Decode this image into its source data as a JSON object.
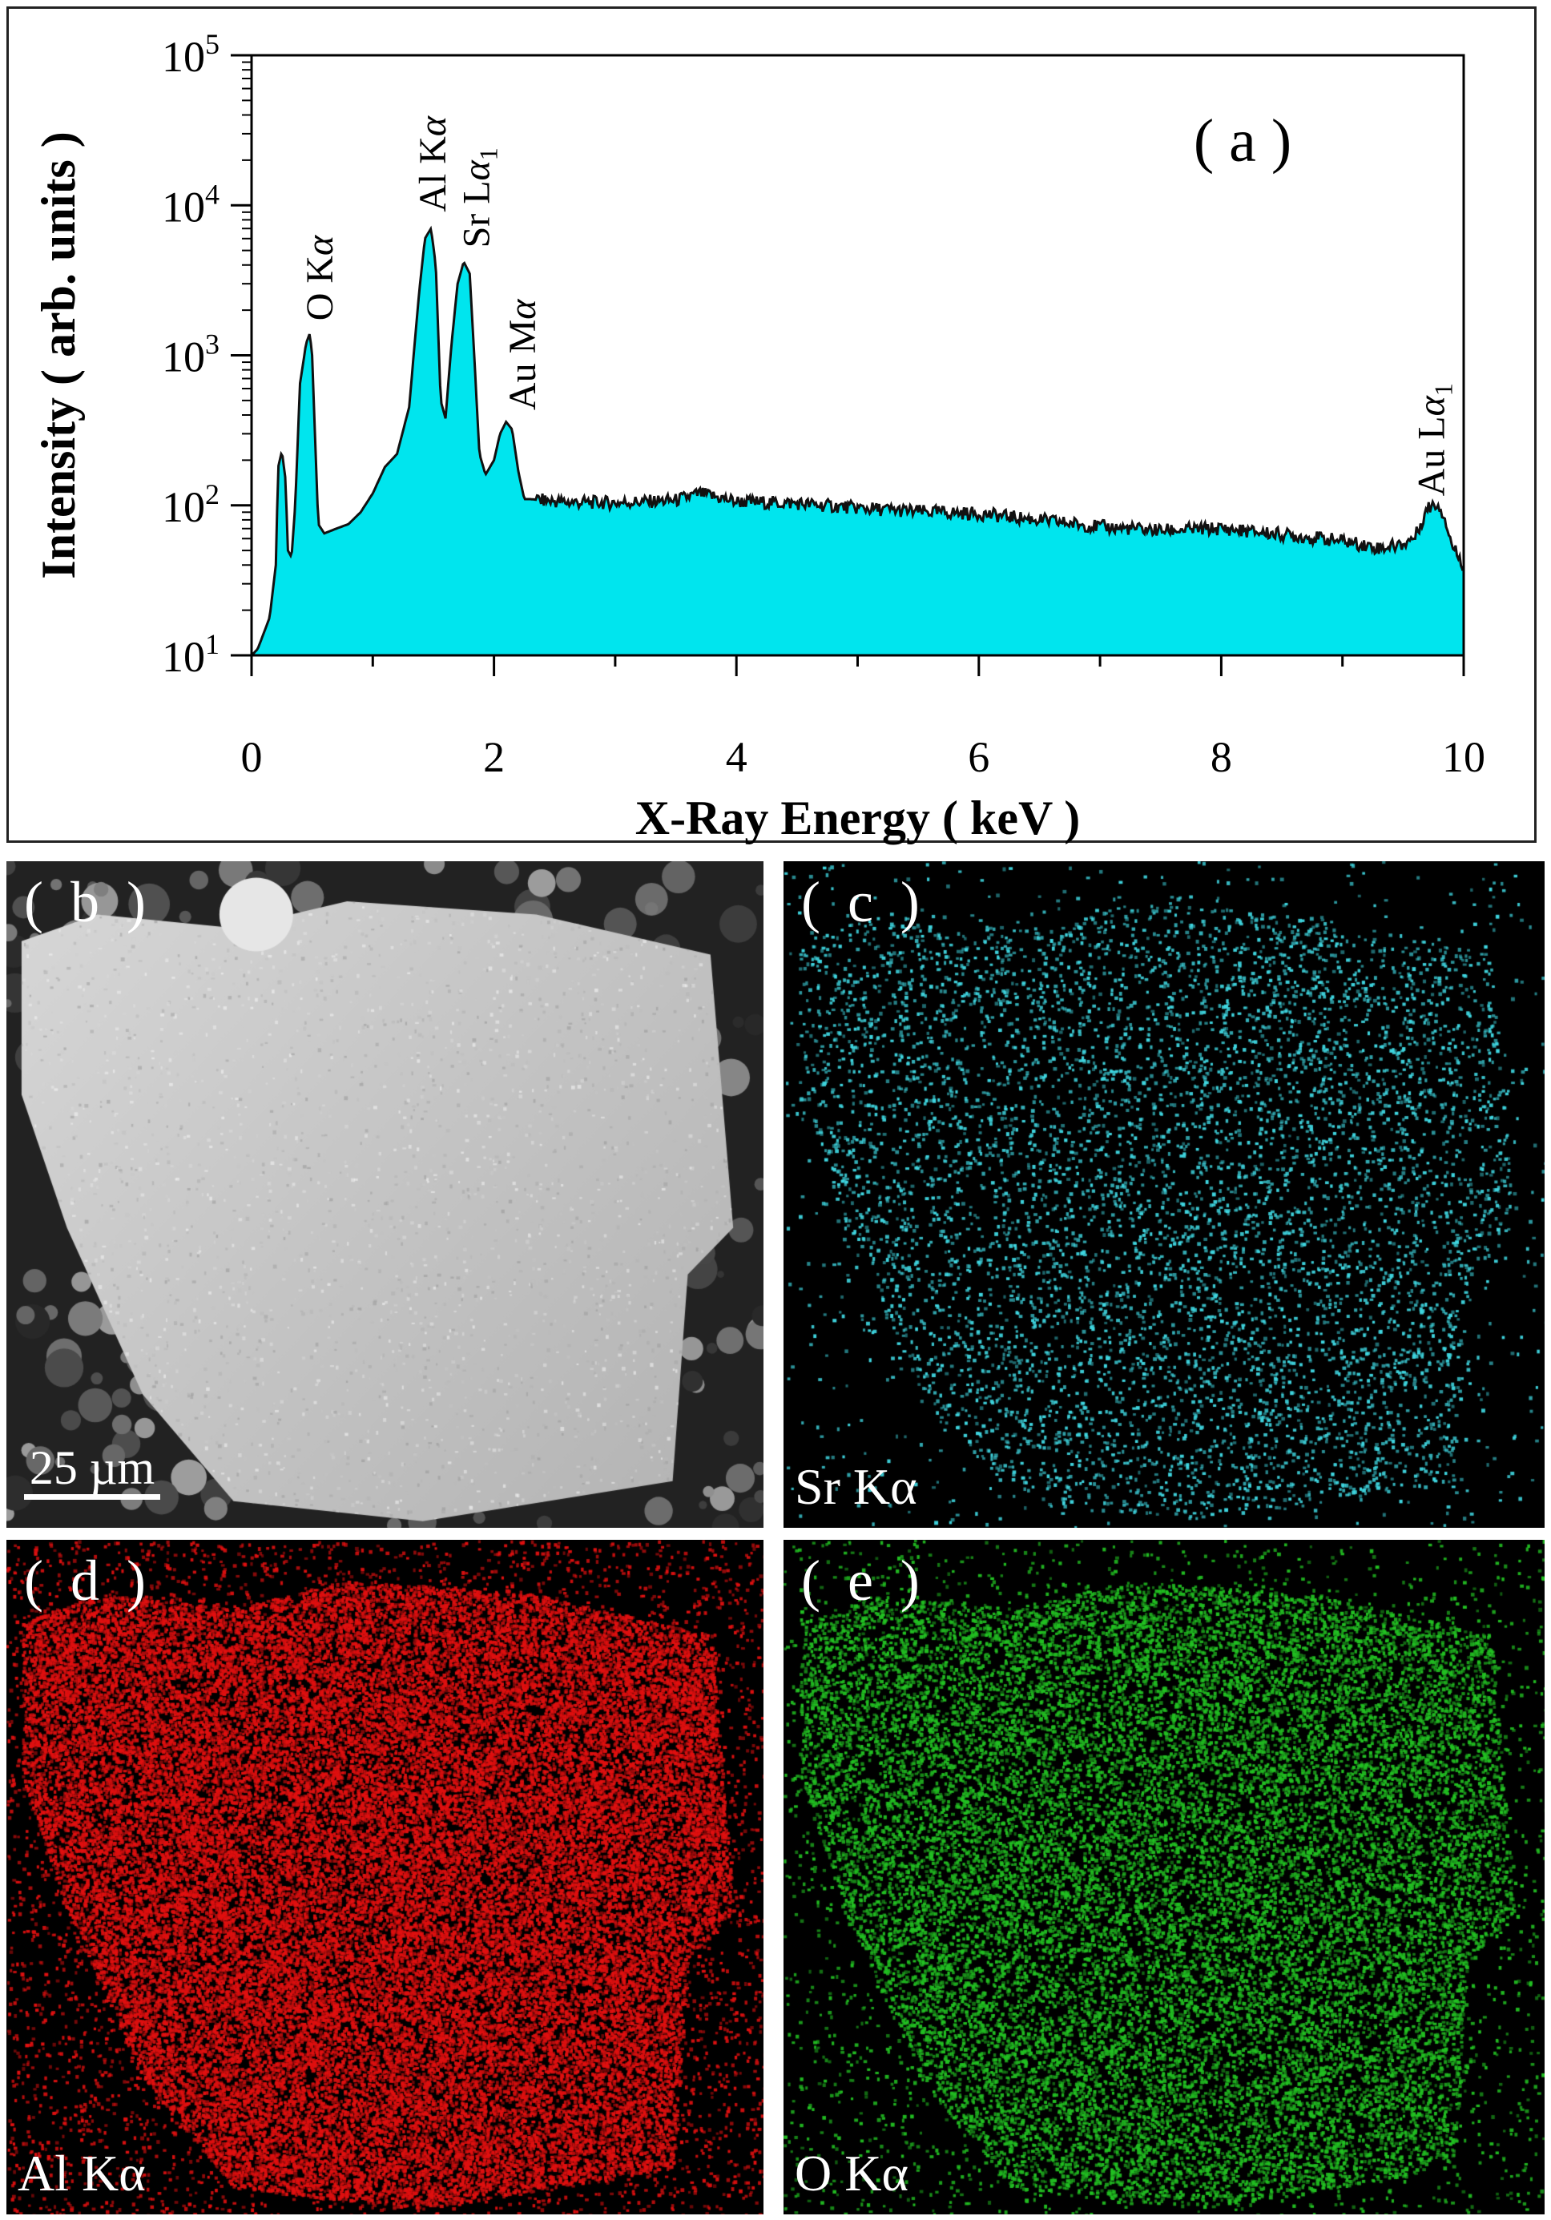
{
  "chart_data": {
    "type": "area",
    "panel_label": "( a )",
    "xlabel": "X-Ray Energy ( keV )",
    "ylabel": "Intensity ( arb. units )",
    "xlim": [
      0,
      10
    ],
    "ylim": [
      10,
      100000
    ],
    "y_scale": "log",
    "x_ticks": [
      0,
      2,
      4,
      6,
      8,
      10
    ],
    "x_tick_labels": [
      "0",
      "2",
      "4",
      "6",
      "8",
      "10"
    ],
    "y_ticks": [
      10,
      100,
      1000,
      10000,
      100000
    ],
    "y_tick_labels": [
      {
        "base": "10",
        "exp": "1"
      },
      {
        "base": "10",
        "exp": "2"
      },
      {
        "base": "10",
        "exp": "3"
      },
      {
        "base": "10",
        "exp": "4"
      },
      {
        "base": "10",
        "exp": "5"
      }
    ],
    "fill_color": "#00e5ee",
    "line_color": "#111111",
    "series": [
      {
        "x": [
          0.0,
          0.05,
          0.1,
          0.15,
          0.2,
          0.22,
          0.25,
          0.28,
          0.3,
          0.33,
          0.36,
          0.4,
          0.45,
          0.48,
          0.5,
          0.52,
          0.55,
          0.6,
          0.7,
          0.8,
          0.9,
          1.0,
          1.1,
          1.2,
          1.3,
          1.38,
          1.43,
          1.48,
          1.52,
          1.56,
          1.6,
          1.65,
          1.7,
          1.75,
          1.8,
          1.84,
          1.88,
          1.93,
          2.0,
          2.05,
          2.1,
          2.15,
          2.2,
          2.25,
          2.3,
          2.4,
          2.6,
          3.0,
          3.5,
          3.7,
          4.0,
          4.5,
          5.0,
          5.5,
          6.0,
          6.5,
          7.0,
          7.5,
          8.0,
          8.5,
          9.0,
          9.3,
          9.5,
          9.6,
          9.7,
          9.75,
          9.8,
          9.85,
          9.9,
          10.0
        ],
        "y": [
          10,
          11,
          14,
          18,
          40,
          180,
          230,
          150,
          50,
          45,
          100,
          650,
          1200,
          1400,
          1000,
          350,
          75,
          65,
          70,
          75,
          90,
          120,
          180,
          220,
          450,
          2500,
          6000,
          7000,
          4000,
          500,
          380,
          1200,
          3000,
          4200,
          3500,
          900,
          220,
          160,
          200,
          300,
          360,
          320,
          170,
          110,
          110,
          108,
          105,
          104,
          108,
          120,
          106,
          103,
          96,
          91,
          88,
          80,
          72,
          68,
          70,
          64,
          58,
          52,
          55,
          62,
          95,
          102,
          100,
          80,
          55,
          40
        ]
      }
    ],
    "annotations": [
      {
        "text": "O K",
        "sub": "",
        "x": 0.55,
        "y": 1700
      },
      {
        "text": "Al K",
        "sub": "",
        "x": 1.48,
        "y": 9000
      },
      {
        "text": "Sr L",
        "sub": "1",
        "x": 1.84,
        "y": 5200
      },
      {
        "text": "Au M",
        "sub": "",
        "x": 2.22,
        "y": 430
      },
      {
        "text": "Au L",
        "sub": "1",
        "x": 9.72,
        "y": 115
      }
    ]
  },
  "panels": [
    {
      "letter": "( b )",
      "element": "",
      "kind": "sem",
      "color": "#d0d0d0",
      "scalebar": "25 µm"
    },
    {
      "letter": "( c )",
      "element": "Sr Kα",
      "kind": "map",
      "color": "#3fd6e0"
    },
    {
      "letter": "( d )",
      "element": "Al Kα",
      "kind": "map",
      "color": "#e01010"
    },
    {
      "letter": "( e )",
      "element": "O Kα",
      "kind": "map",
      "color": "#22c022"
    }
  ]
}
